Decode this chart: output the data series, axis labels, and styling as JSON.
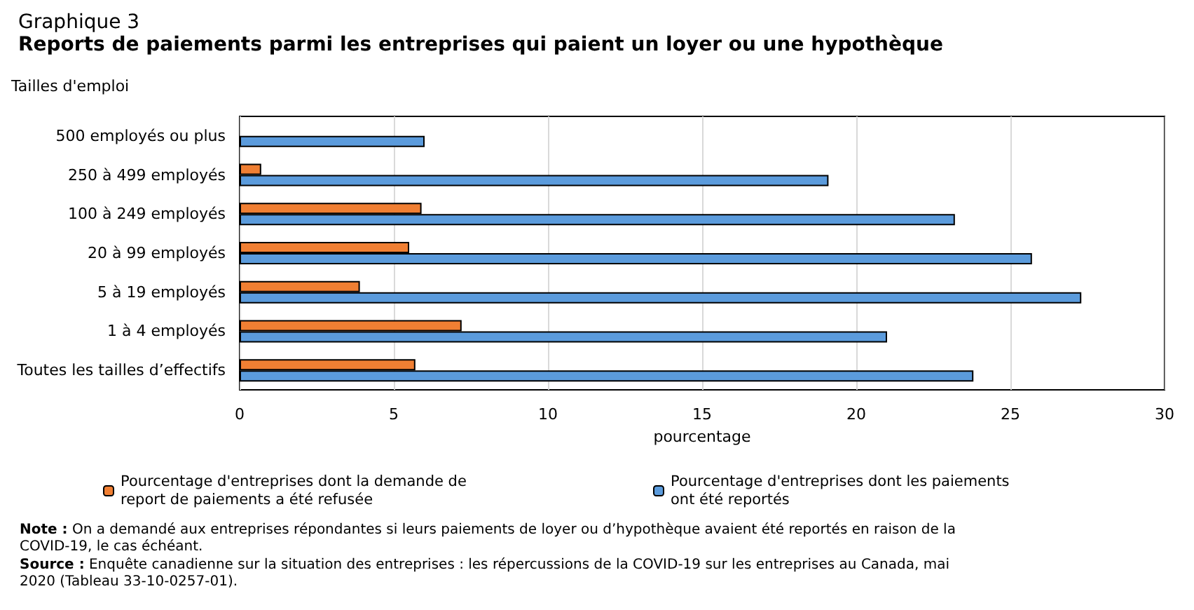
{
  "chart_data": {
    "type": "bar",
    "orientation": "horizontal",
    "title": "Graphique 3",
    "subtitle": "Reports de paiements parmi les entreprises qui paient un loyer ou une hypothèque",
    "ylabel": "Tailles d'emploi",
    "xlabel": "pourcentage",
    "categories": [
      "500 employés ou plus",
      "250 à 499 employés",
      "100 à 249 employés",
      "20 à 99 employés",
      "5 à 19 employés",
      "1 à 4 employés",
      "Toutes les tailles d’effectifs"
    ],
    "series": [
      {
        "name": "Pourcentage d'entreprises dont la demande de report de paiements a été refusée",
        "color": "#f07f33",
        "values": [
          null,
          0.7,
          5.9,
          5.5,
          3.9,
          7.2,
          5.7
        ]
      },
      {
        "name": "Pourcentage d'entreprises dont les paiements ont été reportés",
        "color": "#5b9bdc",
        "values": [
          6.0,
          19.1,
          23.2,
          25.7,
          27.3,
          21.0,
          23.8
        ]
      }
    ],
    "xlim": [
      0,
      30
    ],
    "xticks": [
      0,
      5,
      10,
      15,
      20,
      25,
      30
    ],
    "grid": "x",
    "legend": "bottom",
    "annotations": [
      "Note : On a demandé aux entreprises répondantes si leurs paiements de loyer ou d’hypothèque avaient été reportés en raison de la COVID-19, le cas échéant.",
      "Source : Enquête canadienne sur la situation des entreprises : les répercussions de la COVID-19 sur les entreprises au Canada, mai 2020 (Tableau 33-10-0257-01)."
    ]
  }
}
